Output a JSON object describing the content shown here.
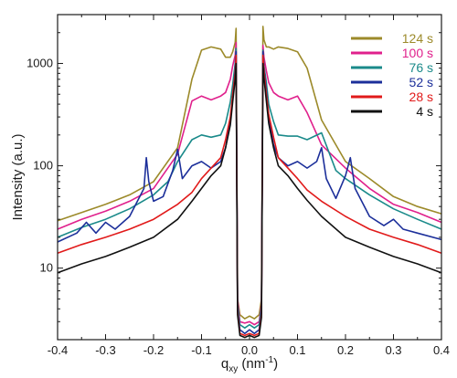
{
  "chart_data": {
    "type": "line",
    "title": "",
    "xlabel_main": "q",
    "xlabel_sub": "xy",
    "xlabel_unit": " (nm",
    "xlabel_unit_sup": "-1",
    "xlabel_close": ")",
    "ylabel": "Intensity (a.u.)",
    "xlim": [
      -0.4,
      0.4
    ],
    "ylim": [
      2,
      3000
    ],
    "yscale": "log",
    "xticks": [
      -0.4,
      -0.3,
      -0.2,
      -0.1,
      0.0,
      0.1,
      0.2,
      0.3,
      0.4
    ],
    "xtick_labels": [
      "-0.4",
      "-0.3",
      "-0.2",
      "-0.1",
      "0.0",
      "0.1",
      "0.2",
      "0.3",
      "0.4"
    ],
    "yticks": [
      10,
      100,
      1000
    ],
    "ytick_labels": [
      "10",
      "100",
      "1000"
    ],
    "grid": false,
    "legend_position": "top-right",
    "series": [
      {
        "name": "124 s",
        "color": "#9c8a2a",
        "x": [
          -0.4,
          -0.35,
          -0.3,
          -0.25,
          -0.2,
          -0.15,
          -0.12,
          -0.1,
          -0.08,
          -0.06,
          -0.05,
          -0.04,
          -0.035,
          -0.03,
          -0.028,
          -0.025,
          -0.02,
          -0.01,
          0.0,
          0.01,
          0.02,
          0.025,
          0.028,
          0.03,
          0.035,
          0.04,
          0.05,
          0.06,
          0.08,
          0.1,
          0.12,
          0.15,
          0.2,
          0.25,
          0.3,
          0.35,
          0.4
        ],
        "y": [
          29,
          35,
          42,
          52,
          70,
          150,
          700,
          1350,
          1450,
          1380,
          1150,
          1150,
          1300,
          1600,
          2200,
          5,
          3.5,
          3.2,
          3.4,
          3.2,
          3.5,
          5,
          2300,
          1700,
          1450,
          1450,
          1380,
          1450,
          1400,
          1300,
          900,
          280,
          110,
          75,
          50,
          40,
          34
        ]
      },
      {
        "name": "100 s",
        "color": "#e0208c",
        "x": [
          -0.4,
          -0.35,
          -0.3,
          -0.25,
          -0.2,
          -0.15,
          -0.12,
          -0.1,
          -0.08,
          -0.06,
          -0.05,
          -0.04,
          -0.035,
          -0.03,
          -0.028,
          -0.025,
          -0.02,
          -0.01,
          0.0,
          0.01,
          0.02,
          0.025,
          0.028,
          0.03,
          0.035,
          0.04,
          0.05,
          0.06,
          0.08,
          0.1,
          0.12,
          0.15,
          0.2,
          0.25,
          0.3,
          0.35,
          0.4
        ],
        "y": [
          24,
          30,
          36,
          45,
          60,
          130,
          430,
          480,
          440,
          480,
          520,
          700,
          950,
          1200,
          1600,
          5,
          3.0,
          2.9,
          3.0,
          2.8,
          3.0,
          4.5,
          1500,
          1150,
          850,
          650,
          520,
          480,
          440,
          480,
          330,
          160,
          95,
          60,
          42,
          35,
          28
        ]
      },
      {
        "name": "76 s",
        "color": "#1a8a8a",
        "x": [
          -0.4,
          -0.35,
          -0.3,
          -0.25,
          -0.2,
          -0.17,
          -0.15,
          -0.12,
          -0.1,
          -0.08,
          -0.06,
          -0.05,
          -0.04,
          -0.035,
          -0.03,
          -0.028,
          -0.025,
          -0.02,
          -0.01,
          0.0,
          0.01,
          0.02,
          0.025,
          0.028,
          0.03,
          0.035,
          0.04,
          0.05,
          0.06,
          0.08,
          0.1,
          0.12,
          0.15,
          0.18,
          0.2,
          0.25,
          0.3,
          0.35,
          0.4
        ],
        "y": [
          20,
          25,
          30,
          38,
          52,
          70,
          110,
          180,
          200,
          190,
          200,
          260,
          420,
          620,
          1000,
          1400,
          4.5,
          2.8,
          2.6,
          2.8,
          2.6,
          2.8,
          4.2,
          1350,
          950,
          650,
          400,
          270,
          200,
          195,
          195,
          180,
          210,
          90,
          75,
          52,
          38,
          30,
          24
        ]
      },
      {
        "name": "52 s",
        "color": "#1c2f9a",
        "x": [
          -0.4,
          -0.36,
          -0.34,
          -0.32,
          -0.3,
          -0.28,
          -0.25,
          -0.22,
          -0.215,
          -0.21,
          -0.2,
          -0.18,
          -0.16,
          -0.15,
          -0.14,
          -0.12,
          -0.1,
          -0.08,
          -0.06,
          -0.05,
          -0.04,
          -0.035,
          -0.03,
          -0.028,
          -0.025,
          -0.02,
          -0.01,
          0.0,
          0.01,
          0.02,
          0.025,
          0.028,
          0.03,
          0.035,
          0.04,
          0.05,
          0.06,
          0.08,
          0.1,
          0.12,
          0.14,
          0.15,
          0.16,
          0.18,
          0.2,
          0.21,
          0.22,
          0.25,
          0.28,
          0.3,
          0.32,
          0.35,
          0.4
        ],
        "y": [
          18,
          22,
          28,
          22,
          28,
          24,
          32,
          60,
          120,
          70,
          45,
          50,
          90,
          145,
          75,
          100,
          110,
          95,
          110,
          150,
          280,
          480,
          850,
          1300,
          4,
          2.5,
          2.3,
          2.5,
          2.3,
          2.5,
          3.8,
          1300,
          900,
          550,
          300,
          160,
          120,
          100,
          110,
          95,
          110,
          150,
          75,
          48,
          80,
          120,
          60,
          32,
          26,
          30,
          24,
          22,
          19
        ]
      },
      {
        "name": "28 s",
        "color": "#e11a1a",
        "x": [
          -0.4,
          -0.35,
          -0.3,
          -0.25,
          -0.2,
          -0.15,
          -0.12,
          -0.1,
          -0.08,
          -0.06,
          -0.05,
          -0.04,
          -0.035,
          -0.03,
          -0.028,
          -0.025,
          -0.02,
          -0.01,
          0.0,
          0.01,
          0.02,
          0.025,
          0.028,
          0.03,
          0.035,
          0.04,
          0.05,
          0.06,
          0.08,
          0.1,
          0.12,
          0.15,
          0.2,
          0.25,
          0.3,
          0.35,
          0.4
        ],
        "y": [
          14,
          17,
          20,
          24,
          30,
          42,
          55,
          75,
          95,
          120,
          180,
          300,
          500,
          800,
          1200,
          3.8,
          2.3,
          2.2,
          2.3,
          2.2,
          2.3,
          3.6,
          1200,
          850,
          500,
          320,
          190,
          120,
          95,
          75,
          58,
          45,
          32,
          24,
          20,
          17,
          14
        ]
      },
      {
        "name": "4 s",
        "color": "#111111",
        "x": [
          -0.4,
          -0.35,
          -0.3,
          -0.25,
          -0.2,
          -0.15,
          -0.12,
          -0.1,
          -0.08,
          -0.06,
          -0.05,
          -0.04,
          -0.035,
          -0.03,
          -0.028,
          -0.025,
          -0.02,
          -0.01,
          0.0,
          0.01,
          0.02,
          0.025,
          0.028,
          0.03,
          0.035,
          0.04,
          0.05,
          0.06,
          0.08,
          0.1,
          0.12,
          0.15,
          0.2,
          0.25,
          0.3,
          0.35,
          0.4
        ],
        "y": [
          9,
          11,
          13,
          16,
          20,
          30,
          45,
          60,
          80,
          100,
          150,
          250,
          420,
          700,
          1000,
          3.5,
          2.2,
          2.1,
          2.2,
          2.1,
          2.2,
          3.3,
          1000,
          720,
          430,
          260,
          150,
          100,
          80,
          60,
          46,
          32,
          20,
          16,
          13,
          11,
          9
        ]
      }
    ]
  }
}
